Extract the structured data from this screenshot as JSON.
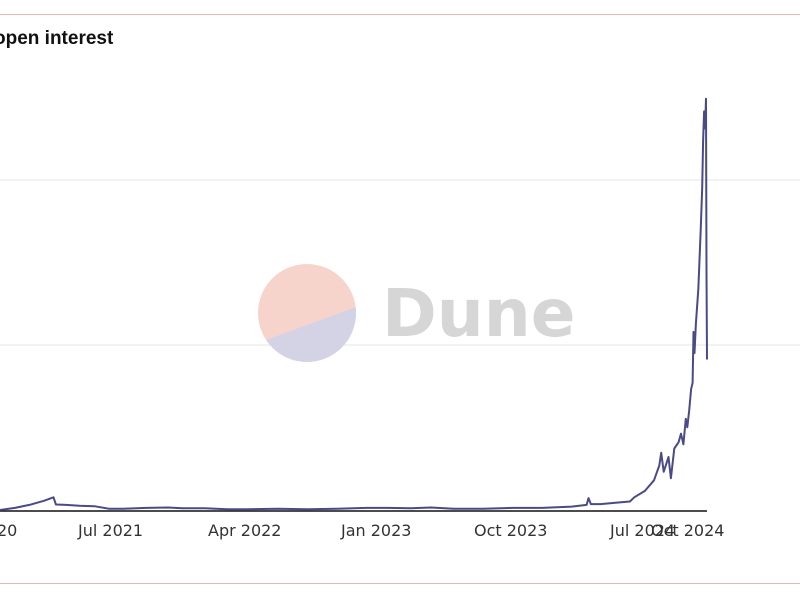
{
  "chart_data": {
    "type": "line",
    "title": "open interest",
    "xlabel": "",
    "ylabel": "",
    "grid": true,
    "x_ticks": [
      "20",
      "Jul 2021",
      "Apr 2022",
      "Jan 2023",
      "Oct 2023",
      "Jul 2024",
      "Oct 2024"
    ],
    "series": [
      {
        "color": "#4a4a86",
        "points": [
          [
            "2020-10-01",
            0.0
          ],
          [
            "2020-11-01",
            0.05
          ],
          [
            "2020-12-01",
            0.12
          ],
          [
            "2021-01-01",
            0.22
          ],
          [
            "2021-01-20",
            0.3
          ],
          [
            "2021-01-25",
            0.13
          ],
          [
            "2021-02-15",
            0.12
          ],
          [
            "2021-03-15",
            0.1
          ],
          [
            "2021-04-15",
            0.09
          ],
          [
            "2021-05-15",
            0.03
          ],
          [
            "2021-06-15",
            0.03
          ],
          [
            "2021-08-01",
            0.05
          ],
          [
            "2021-09-15",
            0.06
          ],
          [
            "2021-10-15",
            0.04
          ],
          [
            "2021-12-01",
            0.04
          ],
          [
            "2022-01-15",
            0.02
          ],
          [
            "2022-03-01",
            0.02
          ],
          [
            "2022-05-01",
            0.03
          ],
          [
            "2022-07-01",
            0.02
          ],
          [
            "2022-09-01",
            0.03
          ],
          [
            "2022-11-01",
            0.05
          ],
          [
            "2022-12-15",
            0.05
          ],
          [
            "2023-02-01",
            0.04
          ],
          [
            "2023-03-15",
            0.06
          ],
          [
            "2023-05-01",
            0.03
          ],
          [
            "2023-07-01",
            0.03
          ],
          [
            "2023-09-01",
            0.05
          ],
          [
            "2023-11-01",
            0.05
          ],
          [
            "2024-01-01",
            0.08
          ],
          [
            "2024-02-01",
            0.12
          ],
          [
            "2024-02-05",
            0.28
          ],
          [
            "2024-02-10",
            0.14
          ],
          [
            "2024-03-01",
            0.14
          ],
          [
            "2024-04-01",
            0.17
          ],
          [
            "2024-05-01",
            0.2
          ],
          [
            "2024-05-10",
            0.3
          ],
          [
            "2024-06-01",
            0.45
          ],
          [
            "2024-06-20",
            0.7
          ],
          [
            "2024-07-01",
            1.05
          ],
          [
            "2024-07-05",
            1.35
          ],
          [
            "2024-07-10",
            0.9
          ],
          [
            "2024-07-20",
            1.25
          ],
          [
            "2024-07-25",
            0.75
          ],
          [
            "2024-08-01",
            1.45
          ],
          [
            "2024-08-10",
            1.6
          ],
          [
            "2024-08-15",
            1.8
          ],
          [
            "2024-08-20",
            1.55
          ],
          [
            "2024-08-25",
            2.15
          ],
          [
            "2024-08-28",
            1.95
          ],
          [
            "2024-09-01",
            2.35
          ],
          [
            "2024-09-05",
            2.85
          ],
          [
            "2024-09-08",
            3.0
          ],
          [
            "2024-09-10",
            4.2
          ],
          [
            "2024-09-12",
            3.7
          ],
          [
            "2024-09-15",
            4.4
          ],
          [
            "2024-09-20",
            5.2
          ],
          [
            "2024-09-25",
            6.6
          ],
          [
            "2024-09-28",
            7.6
          ],
          [
            "2024-09-30",
            8.7
          ],
          [
            "2024-10-02",
            9.4
          ],
          [
            "2024-10-04",
            9.0
          ],
          [
            "2024-10-06",
            9.7
          ],
          [
            "2024-10-07",
            5.6
          ],
          [
            "2024-10-08",
            3.55
          ]
        ]
      }
    ],
    "y_scale": [
      0,
      10
    ],
    "x_domain": [
      "2020-10-01",
      "2024-10-08"
    ]
  },
  "watermark": {
    "text": "Dune"
  },
  "colors": {
    "line": "#4a4a86",
    "border": "#e9b9b0",
    "grid": "#e6e6e6",
    "logo_top": "#f6d3cb",
    "logo_bottom": "#d4d3e6"
  }
}
